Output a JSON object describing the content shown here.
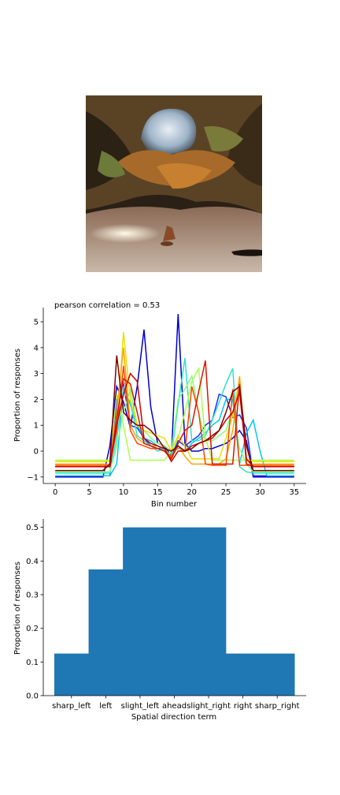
{
  "photo": {
    "description_icon": "cave-photo"
  },
  "chart_data": [
    {
      "type": "line",
      "title": "pearson correlation = 0.53",
      "xlabel": "Bin number",
      "ylabel": "Proportion of responses",
      "xlim": [
        -1.75,
        36.75
      ],
      "ylim": [
        -1.25,
        5.55
      ],
      "xticks": [
        0,
        5,
        10,
        15,
        20,
        25,
        30,
        35
      ],
      "yticks": [
        -1,
        0,
        1,
        2,
        3,
        4,
        5
      ],
      "grid": false,
      "x": [
        0,
        1,
        2,
        3,
        4,
        5,
        6,
        7,
        8,
        9,
        10,
        11,
        12,
        13,
        14,
        15,
        16,
        17,
        18,
        19,
        20,
        21,
        22,
        23,
        24,
        25,
        26,
        27,
        28,
        29,
        30,
        31,
        32,
        33,
        34,
        35
      ],
      "series": [
        {
          "color": "#0000cd",
          "values": [
            -1,
            -1,
            -1,
            -1,
            -1,
            -1,
            -1,
            -1,
            0.2,
            2.5,
            1.9,
            0.9,
            2.5,
            4.7,
            1.7,
            0.3,
            0.2,
            -0.2,
            5.3,
            0.3,
            0.0,
            0.0,
            0.1,
            0.1,
            0.2,
            0.3,
            0.5,
            0.8,
            0.4,
            -1,
            -1,
            -1,
            -1,
            -1,
            -1,
            -1
          ]
        },
        {
          "color": "#1a33ff",
          "values": [
            -0.95,
            -0.95,
            -0.95,
            -0.95,
            -0.95,
            -0.95,
            -0.95,
            -0.95,
            -0.95,
            2.0,
            2.6,
            1.0,
            0.9,
            0.5,
            0.2,
            0.1,
            0.1,
            -0.2,
            0.4,
            0.2,
            0.4,
            0.6,
            1.0,
            1.2,
            2.2,
            2.1,
            1.3,
            1.4,
            0.9,
            -0.95,
            -0.95,
            -0.95,
            -0.95,
            -0.95,
            -0.95,
            -0.95
          ]
        },
        {
          "color": "#00c8f0",
          "values": [
            -0.95,
            -0.95,
            -0.95,
            -0.95,
            -0.95,
            -0.95,
            -0.95,
            -0.95,
            -0.95,
            -0.5,
            2.5,
            1.8,
            1.0,
            0.5,
            0.4,
            0.2,
            0.0,
            -0.1,
            0.1,
            0.0,
            0.3,
            0.5,
            0.7,
            1.0,
            1.2,
            2.0,
            2.0,
            -0.5,
            0.7,
            1.2,
            0.0,
            -0.95,
            -0.95,
            -0.95,
            -0.95,
            -0.95
          ]
        },
        {
          "color": "#30e0d0",
          "values": [
            -0.85,
            -0.85,
            -0.85,
            -0.85,
            -0.85,
            -0.85,
            -0.85,
            -0.85,
            -0.85,
            0.5,
            2.3,
            1.9,
            0.6,
            0.4,
            0.2,
            0.0,
            0.1,
            -0.2,
            1.8,
            3.6,
            0.4,
            0.4,
            0.6,
            1.2,
            1.9,
            2.6,
            3.2,
            -0.6,
            -0.8,
            -0.85,
            -0.85,
            -0.85,
            -0.85,
            -0.85,
            -0.85,
            -0.85
          ]
        },
        {
          "color": "#80ff80",
          "values": [
            -0.8,
            -0.8,
            -0.8,
            -0.8,
            -0.8,
            -0.8,
            -0.8,
            -0.8,
            -0.8,
            0.2,
            1.5,
            2.4,
            1.0,
            0.8,
            0.5,
            0.3,
            0.2,
            0.0,
            2.0,
            2.4,
            2.9,
            1.5,
            0.4,
            0.4,
            0.6,
            0.8,
            1.6,
            0.1,
            -0.5,
            -0.8,
            -0.8,
            -0.8,
            -0.8,
            -0.8,
            -0.8,
            -0.8
          ]
        },
        {
          "color": "#a8ff50",
          "values": [
            -0.35,
            -0.35,
            -0.35,
            -0.35,
            -0.35,
            -0.35,
            -0.35,
            -0.35,
            -0.35,
            2.2,
            1.0,
            -0.35,
            -0.35,
            -0.35,
            -0.35,
            -0.35,
            -0.35,
            0.0,
            0.5,
            1.5,
            2.7,
            3.2,
            0.5,
            -0.35,
            -0.35,
            -0.35,
            -0.35,
            -0.35,
            -0.35,
            -0.35,
            -0.35,
            -0.35,
            -0.35,
            -0.35,
            -0.35,
            -0.35
          ]
        },
        {
          "color": "#e6e000",
          "values": [
            -0.4,
            -0.4,
            -0.4,
            -0.4,
            -0.4,
            -0.4,
            -0.4,
            -0.4,
            -0.4,
            0.8,
            4.6,
            2.0,
            1.0,
            0.8,
            0.7,
            0.6,
            0.5,
            0.0,
            0.6,
            0.2,
            -0.3,
            -0.3,
            -0.3,
            -0.3,
            -0.3,
            0.5,
            1.4,
            2.8,
            -0.3,
            -0.4,
            -0.4,
            -0.4,
            -0.4,
            -0.4,
            -0.4,
            -0.4
          ]
        },
        {
          "color": "#ffa500",
          "values": [
            -0.5,
            -0.5,
            -0.5,
            -0.5,
            -0.5,
            -0.5,
            -0.5,
            -0.5,
            -0.5,
            1.5,
            4.0,
            1.0,
            0.5,
            0.3,
            0.2,
            0.2,
            0.1,
            -0.3,
            0.2,
            -0.2,
            -0.5,
            -0.5,
            -0.5,
            -0.5,
            -0.5,
            -0.3,
            0.8,
            2.9,
            -0.5,
            -0.5,
            -0.5,
            -0.5,
            -0.5,
            -0.5,
            -0.5,
            -0.5
          ]
        },
        {
          "color": "#ff4500",
          "values": [
            -0.55,
            -0.55,
            -0.55,
            -0.55,
            -0.55,
            -0.55,
            -0.55,
            -0.55,
            -0.55,
            0.8,
            3.3,
            0.8,
            0.3,
            0.2,
            0.1,
            0.1,
            0.0,
            -0.2,
            0.2,
            0.0,
            2.5,
            1.5,
            -0.5,
            -0.55,
            -0.55,
            -0.55,
            2.4,
            -0.55,
            -0.55,
            -0.55,
            -0.55,
            -0.55,
            -0.55,
            -0.55,
            -0.55,
            -0.55
          ]
        },
        {
          "color": "#dc1400",
          "values": [
            -0.6,
            -0.6,
            -0.6,
            -0.6,
            -0.6,
            -0.6,
            -0.6,
            -0.6,
            -0.6,
            1.3,
            2.8,
            2.6,
            1.5,
            0.3,
            0.2,
            0.1,
            0.0,
            -0.3,
            0.3,
            0.8,
            1.0,
            2.3,
            3.5,
            -0.5,
            -0.5,
            -0.5,
            -0.5,
            2.6,
            -0.5,
            -0.6,
            -0.6,
            -0.6,
            -0.6,
            -0.6,
            -0.6,
            -0.6
          ]
        },
        {
          "color": "#c80000",
          "values": [
            -0.6,
            -0.6,
            -0.6,
            -0.6,
            -0.6,
            -0.6,
            -0.6,
            -0.6,
            -0.6,
            1.0,
            2.2,
            3.0,
            2.7,
            0.5,
            0.3,
            0.2,
            0.1,
            -0.4,
            0.0,
            0.0,
            0.2,
            0.3,
            0.4,
            0.5,
            0.8,
            1.2,
            1.5,
            2.3,
            -0.3,
            -0.6,
            -0.6,
            -0.6,
            -0.6,
            -0.6,
            -0.6,
            -0.6
          ]
        },
        {
          "color": "#800000",
          "values": [
            -0.75,
            -0.75,
            -0.75,
            -0.75,
            -0.75,
            -0.75,
            -0.75,
            -0.75,
            -0.5,
            3.7,
            1.5,
            1.2,
            1.0,
            1.0,
            0.8,
            0.5,
            0.1,
            0.0,
            0.2,
            0.0,
            0.1,
            0.3,
            0.4,
            0.6,
            0.8,
            1.5,
            2.3,
            2.5,
            0.2,
            -0.75,
            -0.75,
            -0.75,
            -0.75,
            -0.75,
            -0.75,
            -0.75
          ]
        }
      ]
    },
    {
      "type": "bar",
      "xlabel": "Spatial direction term",
      "ylabel": "Proportion of responses",
      "categories": [
        "sharp_left",
        "left",
        "slight_left",
        "ahead",
        "slight_right",
        "right",
        "sharp_right"
      ],
      "values": [
        0.125,
        0.375,
        0.5,
        0.5,
        0.5,
        0.125,
        0.125
      ],
      "ylim": [
        0,
        0.525
      ],
      "yticks": [
        "0.0",
        "0.1",
        "0.2",
        "0.3",
        "0.4",
        "0.5"
      ],
      "bar_color": "#1f77b4",
      "grid": false
    }
  ]
}
